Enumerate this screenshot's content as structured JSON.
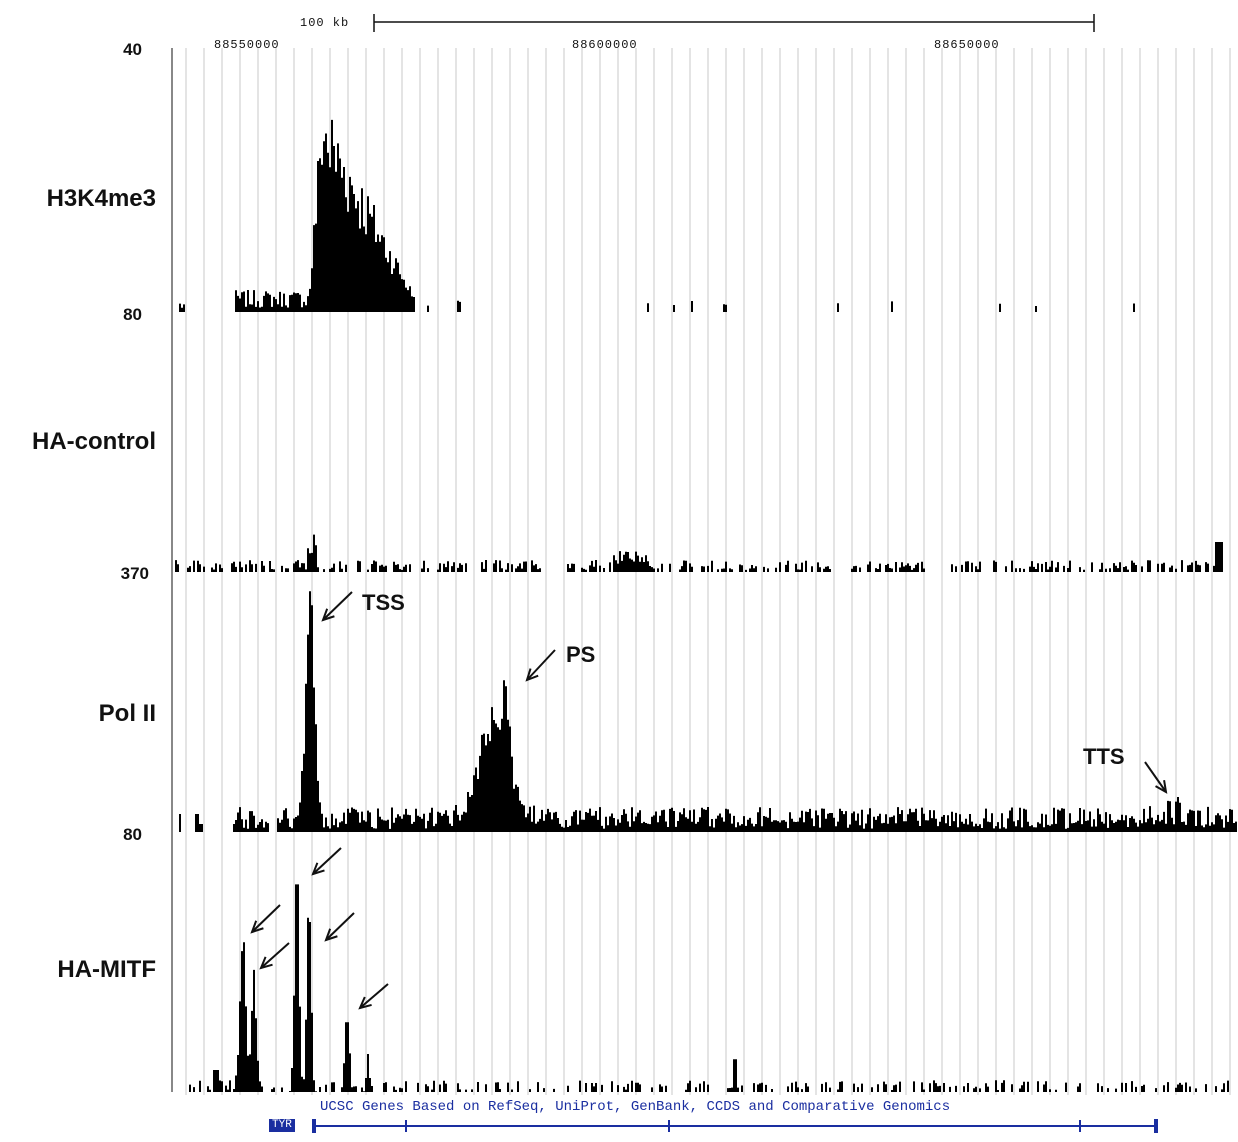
{
  "scale_bar": {
    "label": "100 kb"
  },
  "coordinates": [
    "88550000",
    "88600000",
    "88650000"
  ],
  "tracks": [
    {
      "id": "h3k4me3",
      "label": "H3K4me3",
      "top_value": "40",
      "bottom_value": "80"
    },
    {
      "id": "ha_control",
      "label": "HA-control",
      "top_value": "",
      "bottom_value": "370"
    },
    {
      "id": "pol_ii",
      "label": "Pol II",
      "top_value": "",
      "bottom_value": "80"
    },
    {
      "id": "ha_mitf",
      "label": "HA-MITF",
      "top_value": "",
      "bottom_value": ""
    }
  ],
  "annotations": {
    "tss": "TSS",
    "ps": "PS",
    "tts": "TTS"
  },
  "gene_track": {
    "caption": "UCSC Genes Based on RefSeq, UniProt, GenBank, CCDS and Comparative Genomics",
    "gene_name": "TYR"
  },
  "colors": {
    "signal": "#000000",
    "grid": "#c8c8c8",
    "gene": "#1a2ea0"
  }
}
